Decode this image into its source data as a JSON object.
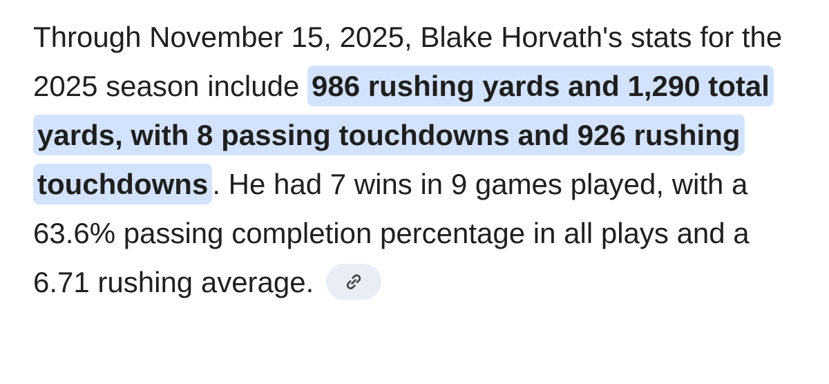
{
  "paragraph": {
    "before": "Through November 15, 2025, Blake Horvath's stats for the 2025 season include",
    "highlight": "986 rushing yards and 1,290 total yards, with 8 passing touchdowns and 926 rushing touchdowns",
    "after": ". He had 7 wins in 9 games played, with a 63.6% passing completion percentage in all plays and a 6.71 rushing average."
  }
}
